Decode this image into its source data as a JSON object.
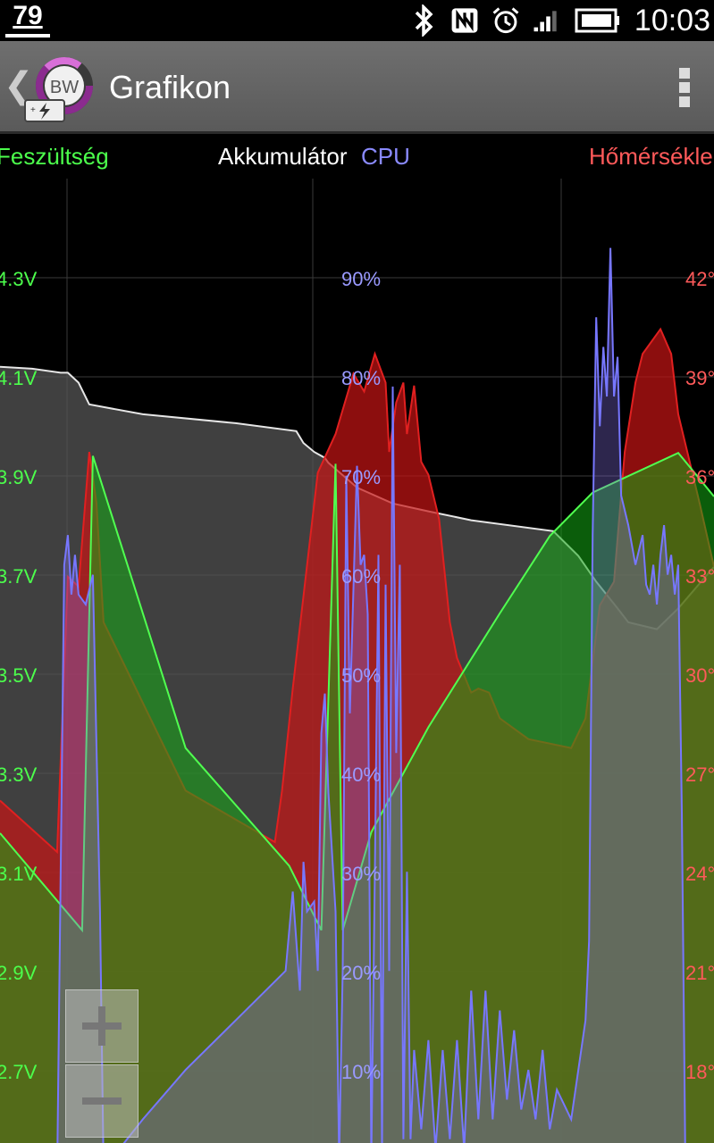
{
  "status_bar": {
    "battery_level": "79",
    "time": "10:03",
    "icons": [
      "bluetooth-icon",
      "nfc-icon",
      "alarm-icon",
      "signal-icon",
      "battery-icon"
    ]
  },
  "action_bar": {
    "back_icon": "chevron-left-icon",
    "logo_text": "BW",
    "title": "Grafikon",
    "menu_icon": "overflow-menu-icon"
  },
  "legend": {
    "voltage": "Feszültség",
    "battery": "Akkumulátor",
    "cpu": "CPU",
    "temperature": "Hőmérsékle"
  },
  "colors": {
    "voltage": "#4cff4c",
    "battery": "#ffffff",
    "cpu": "#8a8aff",
    "temperature": "#ff5a5a",
    "grid": "#3a3a3a"
  },
  "chart_data": {
    "type": "area",
    "axes": {
      "left": {
        "label": "Feszültség",
        "ticks": [
          "4.3V",
          "4.1V",
          "3.9V",
          "3.7V",
          "3.5V",
          "3.3V",
          "3.1V",
          "2.9V",
          "2.7V"
        ]
      },
      "center": {
        "label": "CPU",
        "ticks": [
          "90%",
          "80%",
          "70%",
          "60%",
          "50%",
          "40%",
          "30%",
          "20%",
          "10%"
        ]
      },
      "right": {
        "label": "Hőmérsékle",
        "ticks": [
          "42°",
          "39°",
          "36°",
          "33°",
          "30°",
          "27°",
          "24°",
          "21°",
          "18°"
        ]
      }
    },
    "ylim_percent": [
      0,
      100
    ],
    "series": [
      {
        "name": "Akkumulátor",
        "unit": "%",
        "points": [
          [
            0,
            81
          ],
          [
            0.045,
            80.8
          ],
          [
            0.085,
            80.4
          ],
          [
            0.095,
            80.4
          ],
          [
            0.11,
            79.4
          ],
          [
            0.125,
            77.2
          ],
          [
            0.2,
            76.2
          ],
          [
            0.33,
            75.3
          ],
          [
            0.415,
            74.5
          ],
          [
            0.425,
            73.3
          ],
          [
            0.44,
            72.4
          ],
          [
            0.455,
            71.8
          ],
          [
            0.46,
            71.3
          ],
          [
            0.5,
            68.8
          ],
          [
            0.55,
            67.2
          ],
          [
            0.6,
            66.4
          ],
          [
            0.66,
            65.5
          ],
          [
            0.775,
            64.4
          ],
          [
            0.81,
            61.9
          ],
          [
            0.835,
            59.3
          ],
          [
            0.865,
            56.6
          ],
          [
            0.88,
            55.2
          ],
          [
            0.92,
            54.5
          ],
          [
            0.95,
            56.6
          ],
          [
            1,
            60.8
          ]
        ]
      },
      {
        "name": "Hőmérsékle",
        "unit": "%",
        "points": [
          [
            0,
            37.2
          ],
          [
            0.08,
            32
          ],
          [
            0.095,
            59.8
          ],
          [
            0.11,
            58.8
          ],
          [
            0.125,
            72.4
          ],
          [
            0.135,
            67.3
          ],
          [
            0.145,
            55.2
          ],
          [
            0.26,
            38.2
          ],
          [
            0.385,
            33
          ],
          [
            0.395,
            38.2
          ],
          [
            0.41,
            48.5
          ],
          [
            0.445,
            70.3
          ],
          [
            0.47,
            74.2
          ],
          [
            0.495,
            80.3
          ],
          [
            0.51,
            78.5
          ],
          [
            0.525,
            82.3
          ],
          [
            0.54,
            79.4
          ],
          [
            0.545,
            72.4
          ],
          [
            0.555,
            77.4
          ],
          [
            0.565,
            79.4
          ],
          [
            0.57,
            74.2
          ],
          [
            0.58,
            79.1
          ],
          [
            0.59,
            71.4
          ],
          [
            0.6,
            70.1
          ],
          [
            0.615,
            65.6
          ],
          [
            0.63,
            55.2
          ],
          [
            0.64,
            51.6
          ],
          [
            0.66,
            48.1
          ],
          [
            0.67,
            48.5
          ],
          [
            0.685,
            48.1
          ],
          [
            0.7,
            45.5
          ],
          [
            0.74,
            43.4
          ],
          [
            0.8,
            42.5
          ],
          [
            0.82,
            45.5
          ],
          [
            0.84,
            56.9
          ],
          [
            0.86,
            59.3
          ],
          [
            0.875,
            72.4
          ],
          [
            0.89,
            79.4
          ],
          [
            0.9,
            82.3
          ],
          [
            0.925,
            84.8
          ],
          [
            0.94,
            82.3
          ],
          [
            0.95,
            76.2
          ],
          [
            0.98,
            67.2
          ],
          [
            1,
            60.8
          ]
        ]
      },
      {
        "name": "Feszültség",
        "unit": "%",
        "points": [
          [
            0,
            33.9
          ],
          [
            0.115,
            24.1
          ],
          [
            0.13,
            72
          ],
          [
            0.26,
            42.5
          ],
          [
            0.405,
            30.6
          ],
          [
            0.45,
            24.1
          ],
          [
            0.47,
            71.2
          ],
          [
            0.48,
            24.1
          ],
          [
            0.52,
            34
          ],
          [
            0.6,
            44.6
          ],
          [
            0.7,
            56.1
          ],
          [
            0.77,
            63.9
          ],
          [
            0.83,
            68.3
          ],
          [
            0.95,
            72.3
          ],
          [
            1,
            67.9
          ]
        ]
      },
      {
        "name": "CPU",
        "unit": "%",
        "points": [
          [
            0,
            0
          ],
          [
            0.08,
            -1
          ],
          [
            0.09,
            61
          ],
          [
            0.095,
            64
          ],
          [
            0.1,
            58
          ],
          [
            0.105,
            62
          ],
          [
            0.11,
            58
          ],
          [
            0.12,
            57
          ],
          [
            0.13,
            60
          ],
          [
            0.14,
            26
          ],
          [
            0.145,
            0
          ],
          [
            0.2,
            5
          ],
          [
            0.26,
            10
          ],
          [
            0.33,
            15
          ],
          [
            0.4,
            20
          ],
          [
            0.41,
            28
          ],
          [
            0.42,
            18
          ],
          [
            0.425,
            31
          ],
          [
            0.43,
            26
          ],
          [
            0.44,
            27
          ],
          [
            0.445,
            20
          ],
          [
            0.45,
            44
          ],
          [
            0.455,
            48
          ],
          [
            0.46,
            38
          ],
          [
            0.47,
            26
          ],
          [
            0.475,
            1
          ],
          [
            0.48,
            20
          ],
          [
            0.485,
            70
          ],
          [
            0.49,
            46
          ],
          [
            0.5,
            71
          ],
          [
            0.505,
            61
          ],
          [
            0.51,
            62
          ],
          [
            0.515,
            56
          ],
          [
            0.52,
            1
          ],
          [
            0.525,
            30
          ],
          [
            0.53,
            62
          ],
          [
            0.535,
            2
          ],
          [
            0.54,
            59
          ],
          [
            0.545,
            20
          ],
          [
            0.55,
            79
          ],
          [
            0.555,
            42
          ],
          [
            0.56,
            61
          ],
          [
            0.565,
            3
          ],
          [
            0.57,
            30
          ],
          [
            0.575,
            3
          ],
          [
            0.58,
            12
          ],
          [
            0.59,
            4
          ],
          [
            0.6,
            13
          ],
          [
            0.61,
            2
          ],
          [
            0.62,
            12
          ],
          [
            0.63,
            3
          ],
          [
            0.64,
            13
          ],
          [
            0.65,
            2
          ],
          [
            0.66,
            18
          ],
          [
            0.67,
            5
          ],
          [
            0.68,
            18
          ],
          [
            0.69,
            5
          ],
          [
            0.7,
            16
          ],
          [
            0.71,
            7
          ],
          [
            0.72,
            14
          ],
          [
            0.73,
            6
          ],
          [
            0.74,
            10
          ],
          [
            0.75,
            5
          ],
          [
            0.76,
            12
          ],
          [
            0.77,
            4
          ],
          [
            0.78,
            8
          ],
          [
            0.8,
            5
          ],
          [
            0.82,
            15
          ],
          [
            0.825,
            23
          ],
          [
            0.83,
            64
          ],
          [
            0.835,
            86
          ],
          [
            0.84,
            75
          ],
          [
            0.845,
            83
          ],
          [
            0.85,
            78
          ],
          [
            0.855,
            93
          ],
          [
            0.86,
            78
          ],
          [
            0.865,
            82
          ],
          [
            0.87,
            68
          ],
          [
            0.88,
            65
          ],
          [
            0.89,
            61
          ],
          [
            0.9,
            64
          ],
          [
            0.905,
            59
          ],
          [
            0.91,
            58
          ],
          [
            0.915,
            61
          ],
          [
            0.92,
            57
          ],
          [
            0.925,
            62
          ],
          [
            0.93,
            65
          ],
          [
            0.935,
            60
          ],
          [
            0.94,
            62
          ],
          [
            0.945,
            58
          ],
          [
            0.95,
            61
          ],
          [
            0.955,
            36
          ],
          [
            0.96,
            0
          ],
          [
            1,
            0
          ]
        ]
      }
    ]
  },
  "zoom": {
    "zoom_in_icon": "plus-icon",
    "zoom_out_icon": "minus-icon"
  }
}
